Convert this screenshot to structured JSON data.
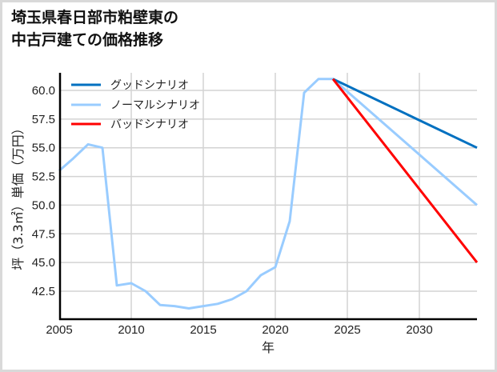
{
  "title_line1": "埼玉県春日部市粕壁東の",
  "title_line2": "中古戸建ての価格推移",
  "chart_data": {
    "type": "line",
    "title": "埼玉県春日部市粕壁東の中古戸建ての価格推移",
    "xlabel": "年",
    "ylabel": "坪（3.3㎡）単価（万円）",
    "xlim": [
      2005,
      2034
    ],
    "ylim": [
      40.5,
      62.0
    ],
    "xticks": [
      2005,
      2010,
      2015,
      2020,
      2025,
      2030
    ],
    "yticks": [
      42.5,
      45.0,
      47.5,
      50.0,
      52.5,
      55.0,
      57.5,
      60.0
    ],
    "grid": true,
    "legend_position": "upper left",
    "series": [
      {
        "name": "グッドシナリオ",
        "color": "#0070c0",
        "x": [
          2024,
          2034
        ],
        "values": [
          61.0,
          55.0
        ]
      },
      {
        "name": "ノーマルシナリオ",
        "color": "#99ccff",
        "x": [
          2005,
          2006,
          2007,
          2008,
          2009,
          2010,
          2011,
          2012,
          2013,
          2014,
          2015,
          2016,
          2017,
          2018,
          2019,
          2020,
          2021,
          2022,
          2023,
          2024,
          2034
        ],
        "values": [
          53.0,
          54.1,
          55.3,
          55.0,
          43.0,
          43.2,
          42.5,
          41.3,
          41.2,
          41.0,
          41.2,
          41.4,
          41.8,
          42.5,
          43.9,
          44.6,
          48.6,
          59.8,
          61.0,
          61.0,
          50.0
        ]
      },
      {
        "name": "バッドシナリオ",
        "color": "#ff0000",
        "x": [
          2024,
          2034
        ],
        "values": [
          61.0,
          45.0
        ]
      }
    ]
  }
}
